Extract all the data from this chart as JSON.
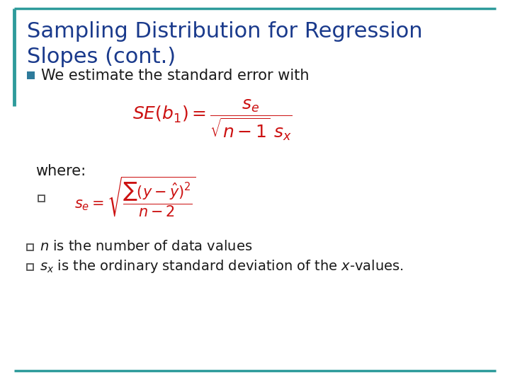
{
  "title_line1": "Sampling Distribution for Regression",
  "title_line2": "Slopes (cont.)",
  "title_color": "#1a3a8c",
  "title_fontsize": 22,
  "accent_color": "#2e9b9b",
  "bullet_fill_color": "#2e7b9b",
  "bullet_text": "We estimate the standard error with",
  "bullet_fontsize": 15,
  "formula1_color": "#cc1111",
  "where_text": "where:",
  "where_fontsize": 15,
  "body_color": "#1a1a1a",
  "body_fontsize": 14,
  "background_color": "#ffffff",
  "sub_bullet_color": "#444444"
}
